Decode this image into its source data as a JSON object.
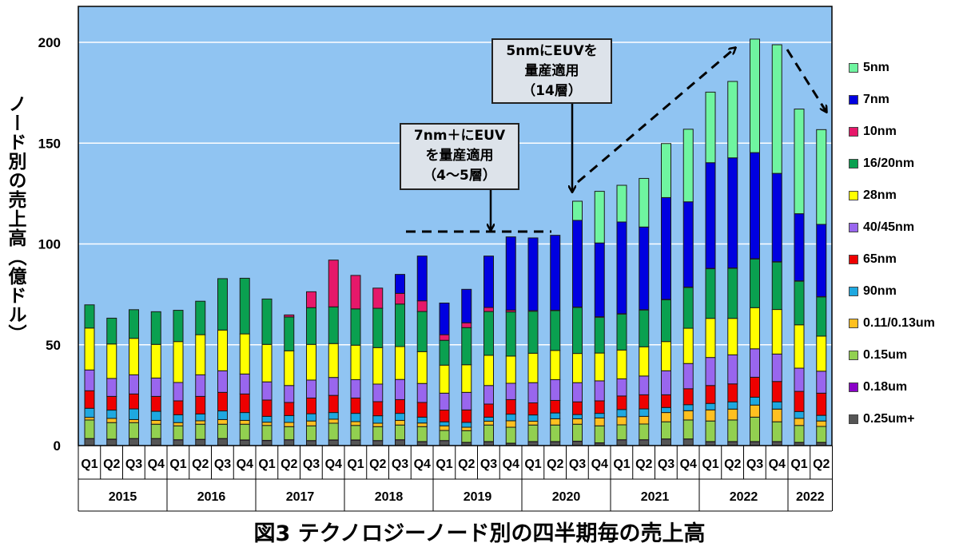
{
  "chart_data": {
    "type": "bar",
    "stacked": true,
    "title": "図3 テクノロジーノード別の四半期毎の売上高",
    "ylabel": "ノード別の売上高（億ドル）",
    "xlabel": "",
    "ylim": [
      0,
      200
    ],
    "yticks": [
      "0",
      "50",
      "100",
      "150",
      "200"
    ],
    "grid": true,
    "legend_position": "right",
    "categories": [
      "Q1",
      "Q2",
      "Q3",
      "Q4",
      "Q1",
      "Q2",
      "Q3",
      "Q4",
      "Q1",
      "Q2",
      "Q3",
      "Q4",
      "Q1",
      "Q2",
      "Q3",
      "Q4",
      "Q1",
      "Q2",
      "Q3",
      "Q4",
      "Q1",
      "Q2",
      "Q3",
      "Q4",
      "Q1",
      "Q2",
      "Q3",
      "Q4",
      "Q1",
      "Q2",
      "Q3",
      "Q4",
      "Q1",
      "Q2"
    ],
    "year_groups": [
      {
        "label": "2015",
        "quarters": 4
      },
      {
        "label": "2016",
        "quarters": 4
      },
      {
        "label": "2017",
        "quarters": 4
      },
      {
        "label": "2018",
        "quarters": 4
      },
      {
        "label": "2019",
        "quarters": 4
      },
      {
        "label": "2020",
        "quarters": 4
      },
      {
        "label": "2021",
        "quarters": 4
      },
      {
        "label": "2022",
        "quarters": 4
      },
      {
        "label": "2022",
        "quarters": 2
      }
    ],
    "series": [
      {
        "name": "0.25um+",
        "color": "#555555",
        "values": [
          3.4,
          3.1,
          3.4,
          3.4,
          2.8,
          3.0,
          3.4,
          2.7,
          2.5,
          2.8,
          2.4,
          2.7,
          2.7,
          2.4,
          2.8,
          1.9,
          2.4,
          1.5,
          1.9,
          1.1,
          1.9,
          1.9,
          2.1,
          1.3,
          2.8,
          2.8,
          3.2,
          3.2,
          1.9,
          1.9,
          1.9,
          1.9,
          1.5,
          1.5
        ]
      },
      {
        "name": "0.18um",
        "color": "#8a00c8",
        "values": [
          0.1,
          0.1,
          0.1,
          0.1,
          0.1,
          0.1,
          0.1,
          0.1,
          0.1,
          0.1,
          0.1,
          0.1,
          0.1,
          0.1,
          0.1,
          0.1,
          0.1,
          0.1,
          0.1,
          0.1,
          0.1,
          0.1,
          0.1,
          0.1,
          0.1,
          0.1,
          0.1,
          0.1,
          0.1,
          0.1,
          0.1,
          0.1,
          0.1,
          0.1
        ]
      },
      {
        "name": "0.15um",
        "color": "#92d050",
        "values": [
          9.2,
          8.2,
          7.9,
          7.1,
          6.9,
          7.5,
          7.1,
          7.8,
          7.4,
          6.5,
          7.3,
          8.3,
          7.2,
          6.9,
          7.3,
          7.4,
          5.0,
          5.8,
          8.2,
          7.9,
          8.2,
          8.2,
          8.4,
          8.4,
          7.4,
          7.8,
          8.5,
          9.4,
          10.2,
          10.7,
          12.1,
          9.8,
          8.4,
          7.9
        ]
      },
      {
        "name": "0.11/0.13um",
        "color": "#ffc020",
        "values": [
          1.3,
          2.1,
          1.5,
          1.9,
          1.6,
          1.7,
          2.3,
          1.9,
          1.6,
          2.1,
          2.4,
          2.0,
          1.9,
          1.7,
          2.3,
          1.8,
          2.3,
          1.7,
          1.9,
          3.2,
          1.9,
          3.1,
          2.7,
          3.9,
          4.0,
          3.8,
          4.6,
          4.6,
          5.5,
          5.4,
          6.0,
          6.3,
          3.5,
          2.7
        ]
      },
      {
        "name": "90nm",
        "color": "#1ea8e0",
        "values": [
          4.5,
          4.1,
          5.3,
          4.5,
          3.9,
          3.4,
          4.3,
          3.9,
          2.9,
          3.4,
          3.6,
          3.3,
          4.1,
          3.7,
          3.5,
          2.9,
          2.0,
          2.4,
          2.0,
          3.3,
          3.1,
          2.9,
          2.1,
          2.3,
          3.6,
          3.7,
          2.5,
          3.0,
          3.2,
          3.6,
          3.9,
          3.6,
          3.4,
          2.8
        ]
      },
      {
        "name": "65nm",
        "color": "#ee0000",
        "values": [
          8.7,
          6.8,
          7.4,
          7.4,
          6.9,
          8.7,
          9.2,
          9.2,
          8.1,
          6.5,
          7.8,
          8.5,
          7.6,
          7.0,
          6.8,
          7.3,
          5.8,
          6.2,
          6.5,
          7.2,
          6.0,
          6.2,
          6.3,
          6.2,
          6.7,
          7.0,
          6.3,
          7.9,
          8.9,
          8.9,
          9.9,
          10.1,
          10.0,
          11.0
        ]
      },
      {
        "name": "40/45nm",
        "color": "#9966ee",
        "values": [
          10.3,
          8.9,
          9.5,
          9.1,
          9.1,
          10.7,
          10.7,
          9.9,
          9.0,
          8.4,
          8.9,
          8.9,
          9.1,
          8.7,
          10.0,
          9.4,
          8.4,
          8.7,
          9.2,
          8.1,
          10.0,
          10.3,
          9.5,
          9.9,
          8.5,
          9.3,
          11.9,
          12.5,
          13.9,
          14.4,
          14.1,
          13.6,
          11.5,
          10.9
        ]
      },
      {
        "name": "28nm",
        "color": "#ffff00",
        "values": [
          20.8,
          17.1,
          18.1,
          16.7,
          20.3,
          19.9,
          20.2,
          19.9,
          18.6,
          17.2,
          17.7,
          16.8,
          17.1,
          18.1,
          16.3,
          15.8,
          13.9,
          13.7,
          15.0,
          13.5,
          14.6,
          14.5,
          14.5,
          13.8,
          14.3,
          14.5,
          14.5,
          17.5,
          19.4,
          18.1,
          20.4,
          22.1,
          21.5,
          17.4
        ]
      },
      {
        "name": "16/20nm",
        "color": "#0aa050",
        "values": [
          11.5,
          12.8,
          14.2,
          16.2,
          15.5,
          16.6,
          25.5,
          27.6,
          22.5,
          16.8,
          18.2,
          18.2,
          18.0,
          19.5,
          21.1,
          19.9,
          12.3,
          18.4,
          21.7,
          21.9,
          20.8,
          19.7,
          22.8,
          17.7,
          17.8,
          18.2,
          20.7,
          20.2,
          24.6,
          24.8,
          24.1,
          23.5,
          21.6,
          19.4
        ]
      },
      {
        "name": "10nm",
        "color": "#e6186a",
        "values": [
          0,
          0,
          0,
          0,
          0,
          0,
          0,
          0,
          0,
          1.0,
          7.9,
          23.2,
          16.6,
          10.0,
          5.3,
          5.3,
          2.8,
          2.4,
          2.0,
          0.9,
          0.3,
          0.2,
          0.2,
          0.3,
          0.2,
          0.2,
          0.2,
          0.2,
          0.2,
          0.2,
          0.2,
          0.2,
          0.2,
          0.2
        ]
      },
      {
        "name": "7nm",
        "color": "#0000e0",
        "values": [
          0,
          0,
          0,
          0,
          0,
          0,
          0,
          0,
          0,
          0,
          0,
          0,
          0,
          0,
          9.4,
          22.2,
          15.7,
          16.6,
          25.5,
          36.3,
          36.1,
          37.2,
          43.0,
          36.6,
          45.5,
          41.0,
          50.5,
          42.3,
          52.4,
          54.6,
          52.6,
          43.8,
          33.3,
          35.8
        ]
      },
      {
        "name": "5nm",
        "color": "#6ff5a0",
        "values": [
          0,
          0,
          0,
          0,
          0,
          0,
          0,
          0,
          0,
          0,
          0,
          0,
          0,
          0,
          0,
          0,
          0,
          0,
          0,
          0,
          0,
          0,
          9.5,
          25.6,
          18.2,
          24.1,
          26.8,
          36.0,
          35.0,
          37.9,
          56.3,
          63.8,
          51.9,
          47.0
        ]
      }
    ],
    "annotations": [
      {
        "lines": [
          "7nm＋にEUV",
          "を量産適用",
          "（4～5層）"
        ]
      },
      {
        "lines": [
          "5nmにEUVを",
          "量産適用",
          "（14層）"
        ]
      }
    ]
  },
  "colors": {
    "plot_background": "#90c4f2",
    "gridline": "#ffffff"
  }
}
